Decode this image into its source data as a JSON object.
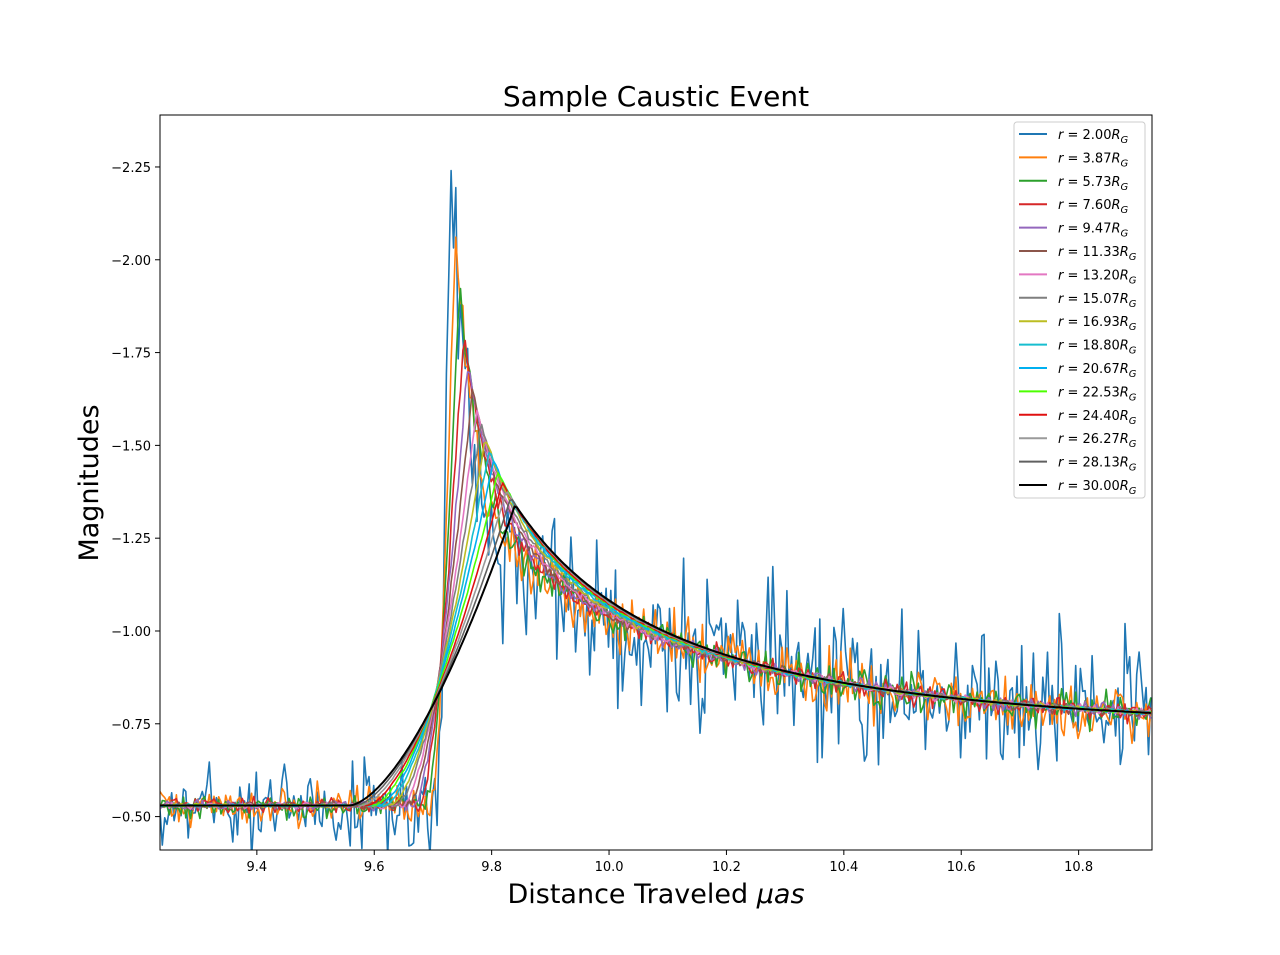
{
  "chart_data": {
    "type": "line",
    "title": "Sample Caustic Event",
    "xlabel_text": "Distance Traveled ",
    "xlabel_math": "μas",
    "ylabel": "Magnitudes",
    "xlim": [
      9.235,
      10.925
    ],
    "ylim": [
      -0.41,
      -2.39
    ],
    "y_inverted": true,
    "grid": false,
    "legend_position": "top-right",
    "xticks": [
      9.4,
      9.6,
      9.8,
      10.0,
      10.2,
      10.4,
      10.6,
      10.8
    ],
    "xtick_labels": [
      "9.4",
      "9.6",
      "9.8",
      "10.0",
      "10.2",
      "10.4",
      "10.6",
      "10.8"
    ],
    "yticks": [
      -0.5,
      -0.75,
      -1.0,
      -1.25,
      -1.5,
      -1.75,
      -2.0,
      -2.25
    ],
    "ytick_labels": [
      "−0.50",
      "−0.75",
      "−1.00",
      "−1.25",
      "−1.50",
      "−1.75",
      "−2.00",
      "−2.25"
    ],
    "caustic_position": 9.72,
    "baseline_before": -0.53,
    "series": [
      {
        "r": "2.00",
        "color": "#1f77b4",
        "peak": -2.27,
        "noise": 0.1
      },
      {
        "r": "3.87",
        "color": "#ff7f0e",
        "peak": -2.09,
        "noise": 0.04
      },
      {
        "r": "5.73",
        "color": "#2ca02c",
        "peak": -1.93,
        "noise": 0.025
      },
      {
        "r": "7.60",
        "color": "#d62728",
        "peak": -1.81,
        "noise": 0.015
      },
      {
        "r": "9.47",
        "color": "#9467bd",
        "peak": -1.72,
        "noise": 0.01
      },
      {
        "r": "11.33",
        "color": "#8c564b",
        "peak": -1.65,
        "noise": 0.008
      },
      {
        "r": "13.20",
        "color": "#e377c2",
        "peak": -1.6,
        "noise": 0.006
      },
      {
        "r": "15.07",
        "color": "#7f7f7f",
        "peak": -1.56,
        "noise": 0.005
      },
      {
        "r": "16.93",
        "color": "#bcbd22",
        "peak": -1.52,
        "noise": 0.004
      },
      {
        "r": "18.80",
        "color": "#17becf",
        "peak": -1.49,
        "noise": 0.003
      },
      {
        "r": "20.67",
        "color": "#00b0f0",
        "peak": -1.46,
        "noise": 0.002
      },
      {
        "r": "22.53",
        "color": "#4cff00",
        "peak": -1.43,
        "noise": 0.002
      },
      {
        "r": "24.40",
        "color": "#e01010",
        "peak": -1.4,
        "noise": 0.001
      },
      {
        "r": "26.27",
        "color": "#9a9a9a",
        "peak": -1.38,
        "noise": 0.001
      },
      {
        "r": "28.13",
        "color": "#606060",
        "peak": -1.36,
        "noise": 0.0
      },
      {
        "r": "30.00",
        "color": "#000000",
        "peak": -1.34,
        "noise": 0.0
      }
    ]
  }
}
